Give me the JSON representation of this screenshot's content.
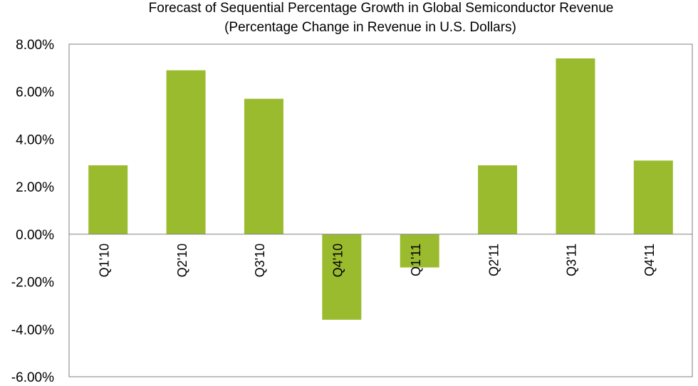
{
  "chart_data": {
    "type": "bar",
    "title": "Forecast of Sequential Percentage Growth in Global Semiconductor Revenue",
    "subtitle": "(Percentage Change in Revenue in U.S. Dollars)",
    "categories": [
      "Q1'10",
      "Q2'10",
      "Q3'10",
      "Q4'10",
      "Q1'11",
      "Q2'11",
      "Q3'11",
      "Q4'11"
    ],
    "values": [
      2.9,
      6.9,
      5.7,
      -3.6,
      -1.4,
      2.9,
      7.4,
      3.1
    ],
    "ylim": [
      -6,
      8
    ],
    "ytick_values": [
      8,
      6,
      4,
      2,
      0,
      -2,
      -4,
      -6
    ],
    "ytick_labels": [
      "8.00%",
      "6.00%",
      "4.00%",
      "2.00%",
      "0.00%",
      "-2.00%",
      "-4.00%",
      "-6.00%"
    ],
    "bar_color": "#9BBB2F",
    "grid": false,
    "legend": "none"
  }
}
